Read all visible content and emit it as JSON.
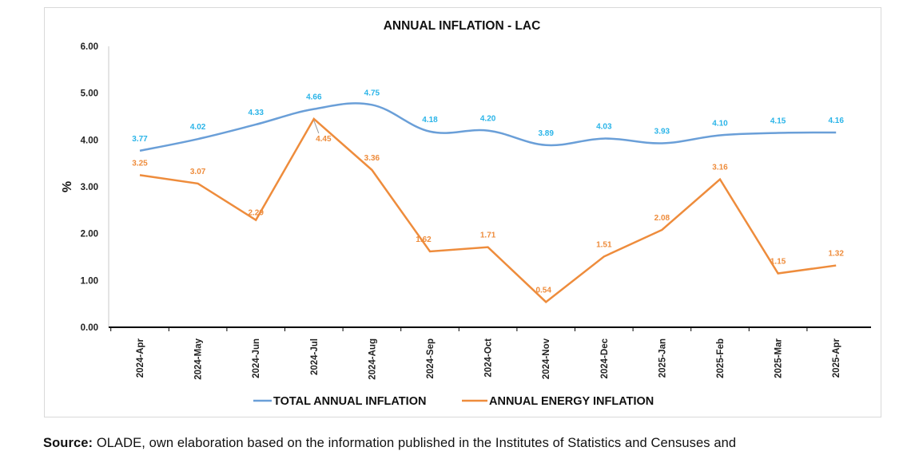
{
  "source": {
    "label": "Source:",
    "text": "OLADE, own elaboration based on the information published in the Institutes of Statistics and Censuses and"
  },
  "colors": {
    "total": "#6a9fd8",
    "energy": "#ee8c3c",
    "total_label": "#2ab4e8",
    "energy_label": "#ee8c3c",
    "axis": "#000000"
  },
  "chart_data": {
    "type": "line",
    "title": "ANNUAL INFLATION  - LAC",
    "ylabel": "%",
    "xlabel": "",
    "ylim": [
      0,
      6
    ],
    "y_ticks": [
      "0.00",
      "1.00",
      "2.00",
      "3.00",
      "4.00",
      "5.00",
      "6.00"
    ],
    "grid": false,
    "legend_position": "bottom",
    "categories": [
      "2024-Apr",
      "2024-May",
      "2024-Jun",
      "2024-Jul",
      "2024-Aug",
      "2024-Sep",
      "2024-Oct",
      "2024-Nov",
      "2024-Dec",
      "2025-Jan",
      "2025-Feb",
      "2025-Mar",
      "2025-Apr"
    ],
    "series": [
      {
        "name": "TOTAL ANNUAL INFLATION",
        "values": [
          3.77,
          4.02,
          4.33,
          4.66,
          4.75,
          4.18,
          4.2,
          3.89,
          4.03,
          3.93,
          4.1,
          4.15,
          4.16
        ],
        "labels": [
          "3.77",
          "4.02",
          "4.33",
          "4.66",
          "4.75",
          "4.18",
          "4.20",
          "3.89",
          "4.03",
          "3.93",
          "4.10",
          "4.15",
          "4.16"
        ],
        "smooth": true
      },
      {
        "name": "ANNUAL ENERGY INFLATION",
        "values": [
          3.25,
          3.07,
          2.29,
          4.45,
          3.36,
          1.62,
          1.71,
          0.54,
          1.51,
          2.08,
          3.16,
          1.15,
          1.32
        ],
        "labels": [
          "3.25",
          "3.07",
          "2.29",
          "4.45",
          "3.36",
          "1.62",
          "1.71",
          "0.54",
          "1.51",
          "2.08",
          "3.16",
          "1.15",
          "1.32"
        ],
        "smooth": false
      }
    ]
  }
}
